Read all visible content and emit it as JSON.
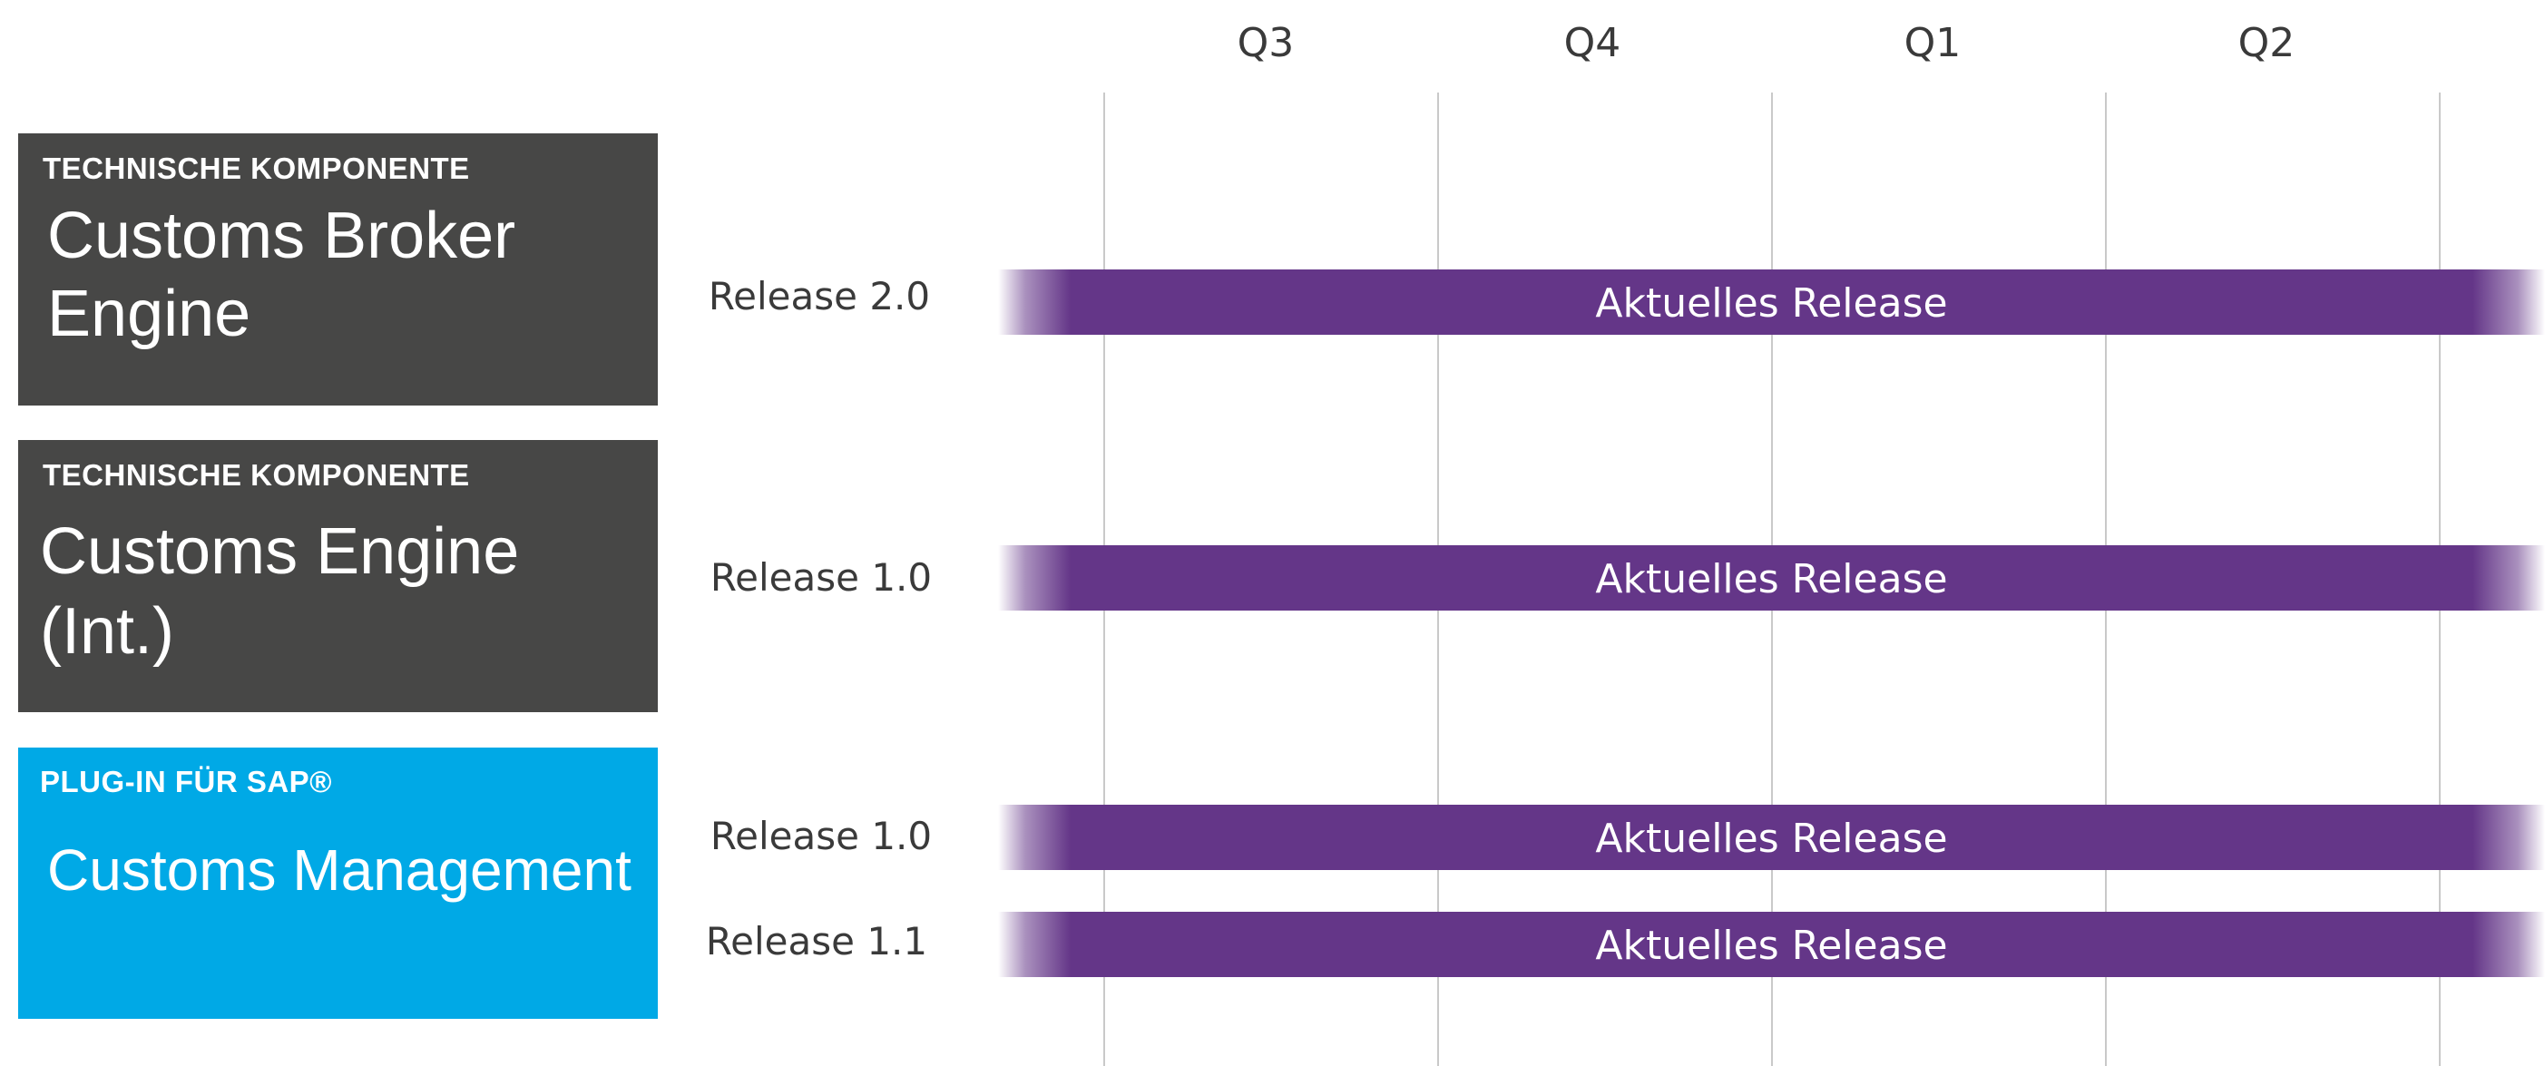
{
  "quarters": [
    "Q3",
    "Q4",
    "Q1",
    "Q2"
  ],
  "components": [
    {
      "kicker": "TECHNISCHE KOMPONENTE",
      "name_line1": "Customs Broker",
      "name_line2": "Engine",
      "color": "#474746"
    },
    {
      "kicker": "TECHNISCHE KOMPONENTE",
      "name_line1": "Customs Engine",
      "name_line2": "(Int.)",
      "color": "#474746"
    },
    {
      "kicker": "PLUG-IN FÜR SAP®",
      "name_line1": "Customs Management",
      "name_line2": "",
      "color": "#00a9e6"
    }
  ],
  "releases": [
    {
      "label": "Release 2.0",
      "bar_text": "Aktuelles Release"
    },
    {
      "label": "Release 1.0",
      "bar_text": "Aktuelles Release"
    },
    {
      "label": "Release 1.0",
      "bar_text": "Aktuelles Release"
    },
    {
      "label": "Release 1.1",
      "bar_text": "Aktuelles Release"
    }
  ],
  "colors": {
    "bar": "#643688",
    "dark_box": "#474746",
    "blue_box": "#00a9e6",
    "gridline": "#c9c9c9"
  }
}
